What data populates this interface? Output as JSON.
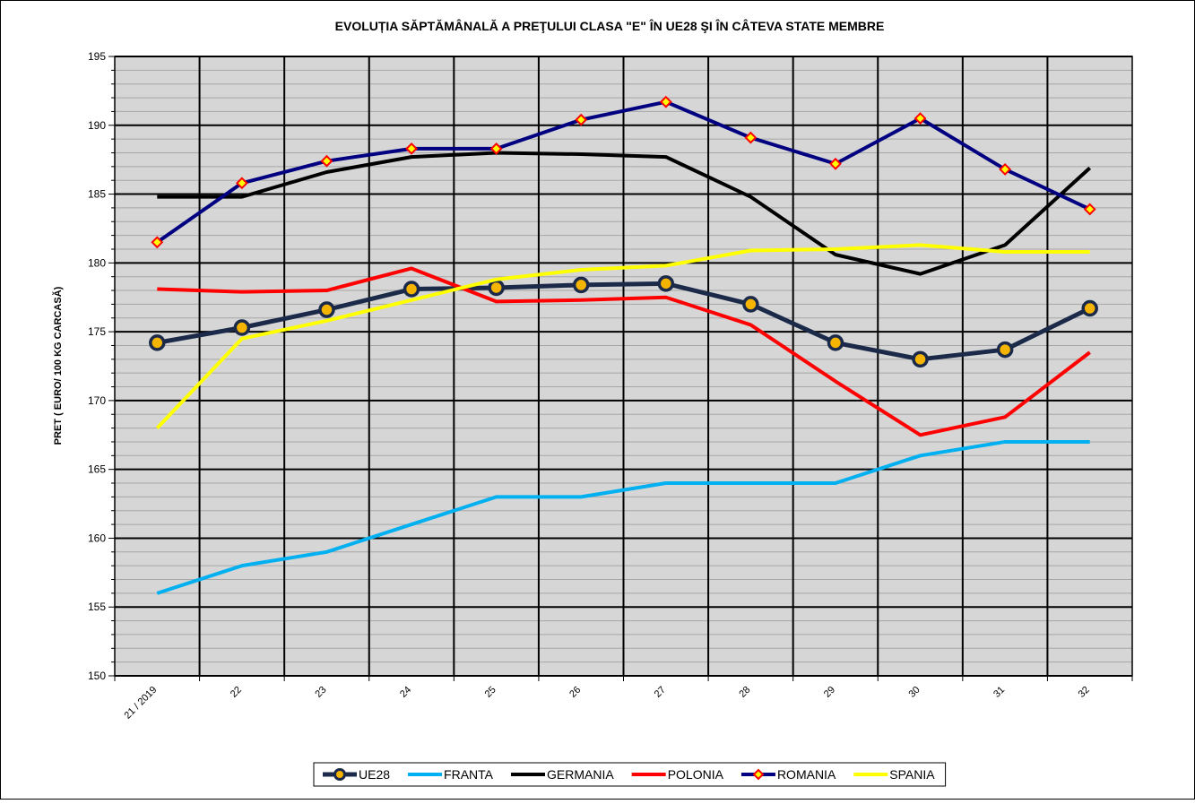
{
  "chart_data": {
    "type": "line",
    "title": "EVOLUȚIA SĂPTĂMÂNALĂ  A PREŢULUI CLASA \"E\"  ÎN  UE28 ŞI ÎN  CÂTEVA STATE MEMBRE",
    "y_label": "PRET ( EURO/ 100  KG  CARCASĂ)",
    "categories": [
      "21 / 2019",
      "22",
      "23",
      "24",
      "25",
      "26",
      "27",
      "28",
      "29",
      "30",
      "31",
      "32"
    ],
    "series": [
      {
        "name": "UE28",
        "color": "#1c2a4a",
        "marker": "circle",
        "marker_color": "#f5b400",
        "values": [
          174.2,
          175.3,
          176.6,
          178.1,
          178.2,
          178.4,
          178.5,
          177.0,
          174.2,
          173.0,
          173.7,
          176.7
        ]
      },
      {
        "name": "FRANTA",
        "color": "#00b0f0",
        "values": [
          156.0,
          158.0,
          159.0,
          161.0,
          163.0,
          163.0,
          164.0,
          164.0,
          164.0,
          166.0,
          167.0,
          167.0
        ]
      },
      {
        "name": "GERMANIA",
        "color": "#000000",
        "values": [
          184.8,
          184.8,
          186.6,
          187.7,
          188.0,
          187.9,
          187.7,
          184.8,
          180.6,
          179.2,
          181.3,
          186.9
        ]
      },
      {
        "name": "POLONIA",
        "color": "#ff0000",
        "values": [
          178.1,
          177.9,
          178.0,
          179.6,
          177.2,
          177.3,
          177.5,
          175.5,
          171.4,
          167.5,
          168.8,
          173.5
        ]
      },
      {
        "name": "ROMANIA",
        "color": "#000080",
        "marker": "diamond",
        "marker_color": "#ffff00",
        "marker_edge": "#ff0000",
        "values": [
          181.5,
          185.8,
          187.4,
          188.3,
          188.3,
          190.4,
          191.7,
          189.1,
          187.2,
          190.5,
          186.8,
          183.9
        ]
      },
      {
        "name": "SPANIA",
        "color": "#ffff00",
        "values": [
          168.0,
          174.5,
          175.8,
          177.3,
          178.8,
          179.5,
          179.8,
          180.9,
          181.0,
          181.3,
          180.8,
          180.8
        ]
      }
    ],
    "ylim": [
      150,
      195
    ],
    "yticks": [
      150,
      155,
      160,
      165,
      170,
      175,
      180,
      185,
      190,
      195
    ],
    "grid": true,
    "legend": "bottom"
  }
}
